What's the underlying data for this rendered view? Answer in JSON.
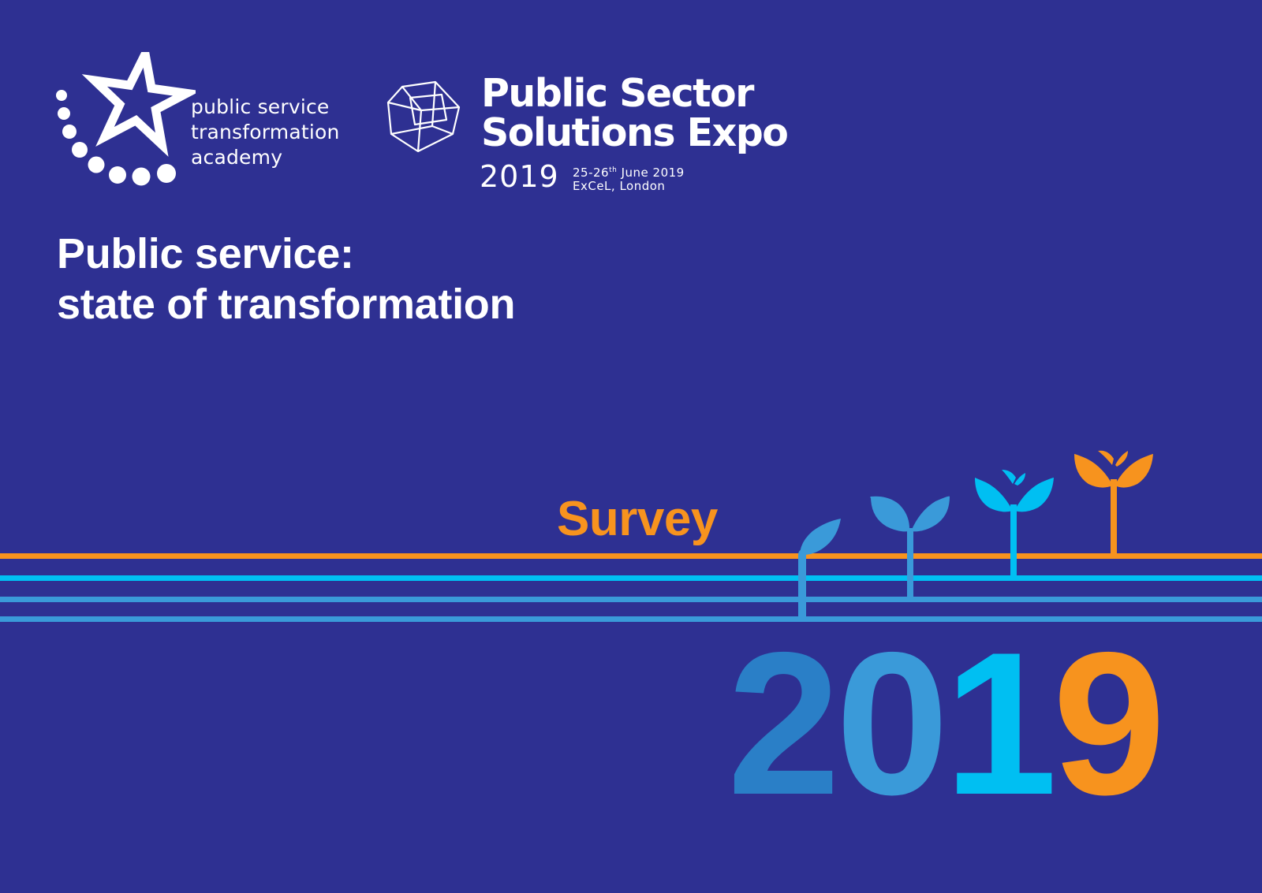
{
  "colors": {
    "background": "#2e3092",
    "orange": "#f7931e",
    "cyan": "#00bff2",
    "light_blue": "#3a9ad9",
    "mid_blue": "#2a7fc7",
    "white": "#ffffff"
  },
  "psta_logo": {
    "icon": "star-with-dots-icon",
    "lines": [
      "public service",
      "transformation",
      "academy"
    ]
  },
  "expo_logo": {
    "icon": "geometric-cube-icon",
    "title_lines": [
      "Public Sector",
      "Solutions Expo"
    ],
    "year": "2019",
    "date_day": "25-26",
    "date_suffix": "th",
    "date_rest": " June 2019",
    "venue": "ExCeL, London"
  },
  "headline": {
    "line1": "Public service:",
    "line2": "state of transformation"
  },
  "survey_label": "Survey",
  "big_year": {
    "digits": [
      "2",
      "0",
      "1",
      "9"
    ],
    "digit_colors": [
      "#2a7fc7",
      "#3a9ad9",
      "#00bff2",
      "#f7931e"
    ]
  },
  "graphic": {
    "icon": "growing-sprouts-icon",
    "stripe_colors": [
      "#f7931e",
      "#00bff2",
      "#3a9ad9",
      "#3a9ad9"
    ]
  }
}
